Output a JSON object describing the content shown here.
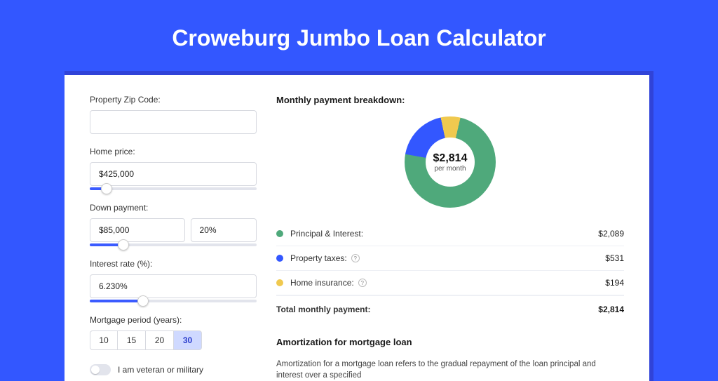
{
  "title": "Croweburg Jumbo Loan Calculator",
  "colors": {
    "page_bg": "#3357ff",
    "panel_border": "#3043d8",
    "accent": "#3b5bff",
    "principal": "#4fa97b",
    "taxes": "#3357ff",
    "insurance": "#f0c94f"
  },
  "form": {
    "zip_label": "Property Zip Code:",
    "zip_value": "",
    "home_price_label": "Home price:",
    "home_price_value": "$425,000",
    "home_price_slider_pct": 10,
    "down_payment_label": "Down payment:",
    "down_payment_value": "$85,000",
    "down_payment_pct": "20%",
    "down_payment_slider_pct": 20,
    "interest_label": "Interest rate (%):",
    "interest_value": "6.230%",
    "interest_slider_pct": 32,
    "period_label": "Mortgage period (years):",
    "period_options": [
      "10",
      "15",
      "20",
      "30"
    ],
    "period_selected": "30",
    "veteran_label": "I am veteran or military"
  },
  "breakdown": {
    "title": "Monthly payment breakdown:",
    "center_amount": "$2,814",
    "center_sub": "per month",
    "donut": {
      "principal_deg": 267,
      "taxes_deg": 68,
      "insurance_deg": 25
    },
    "rows": [
      {
        "key": "principal",
        "label": "Principal & Interest:",
        "value": "$2,089",
        "info": false
      },
      {
        "key": "taxes",
        "label": "Property taxes:",
        "value": "$531",
        "info": true
      },
      {
        "key": "insurance",
        "label": "Home insurance:",
        "value": "$194",
        "info": true
      }
    ],
    "total_label": "Total monthly payment:",
    "total_value": "$2,814"
  },
  "amortization": {
    "title": "Amortization for mortgage loan",
    "text": "Amortization for a mortgage loan refers to the gradual repayment of the loan principal and interest over a specified"
  }
}
